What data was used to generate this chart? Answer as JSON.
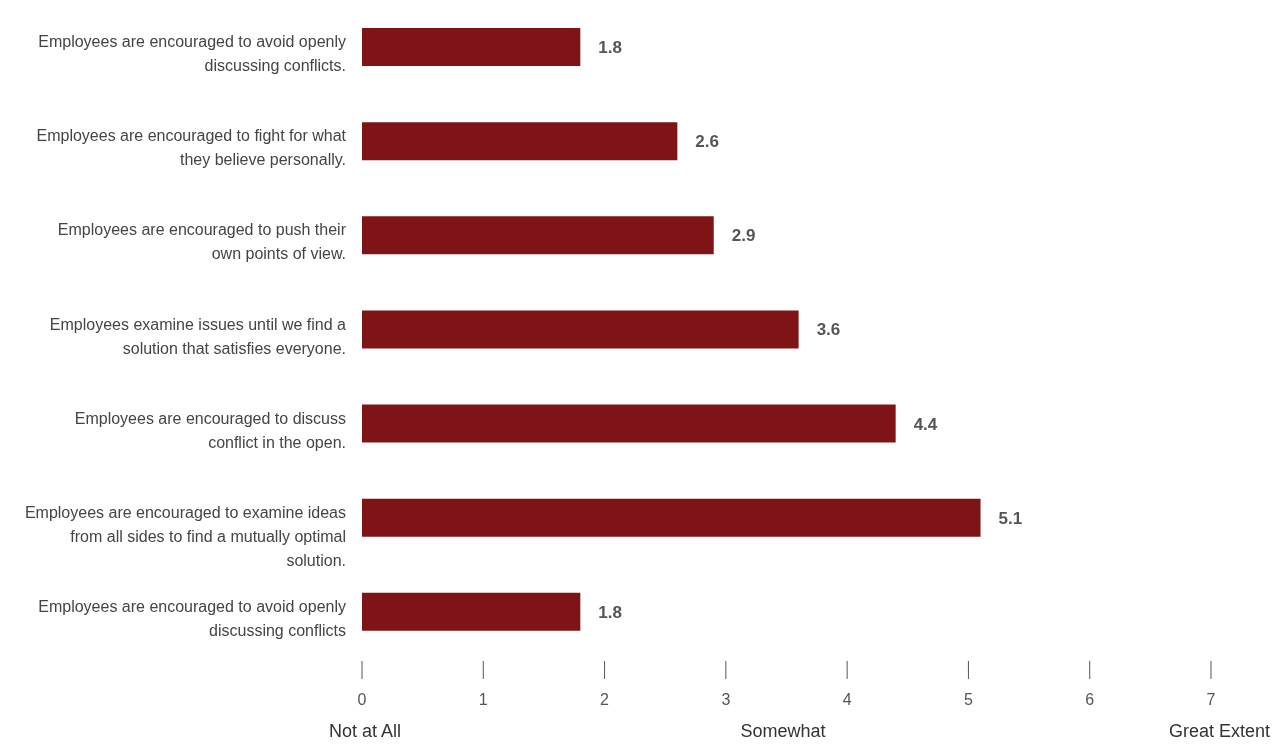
{
  "chart_data": {
    "type": "bar",
    "orientation": "horizontal",
    "categories": [
      "Employees are encouraged to avoid openly discussing conflicts.",
      "Employees are encouraged to fight for what they believe personally.",
      "Employees are encouraged to push their own points of view.",
      "Employees examine issues until we find a solution that satisfies everyone.",
      "Employees are encouraged to discuss conflict in the open.",
      "Employees are encouraged to examine ideas from all sides to find a mutually optimal solution.",
      "Employees are encouraged to avoid openly discussing conflicts"
    ],
    "values": [
      1.8,
      2.6,
      2.9,
      3.6,
      4.4,
      5.1,
      1.8
    ],
    "color": "#7f1416",
    "xlim": [
      0,
      7
    ],
    "xticks": [
      0,
      1,
      2,
      3,
      4,
      5,
      6,
      7
    ],
    "data_labels": true,
    "grid": false,
    "legend": false,
    "annotations": [
      "Not at All",
      "Somewhat",
      "Great Extent"
    ]
  }
}
